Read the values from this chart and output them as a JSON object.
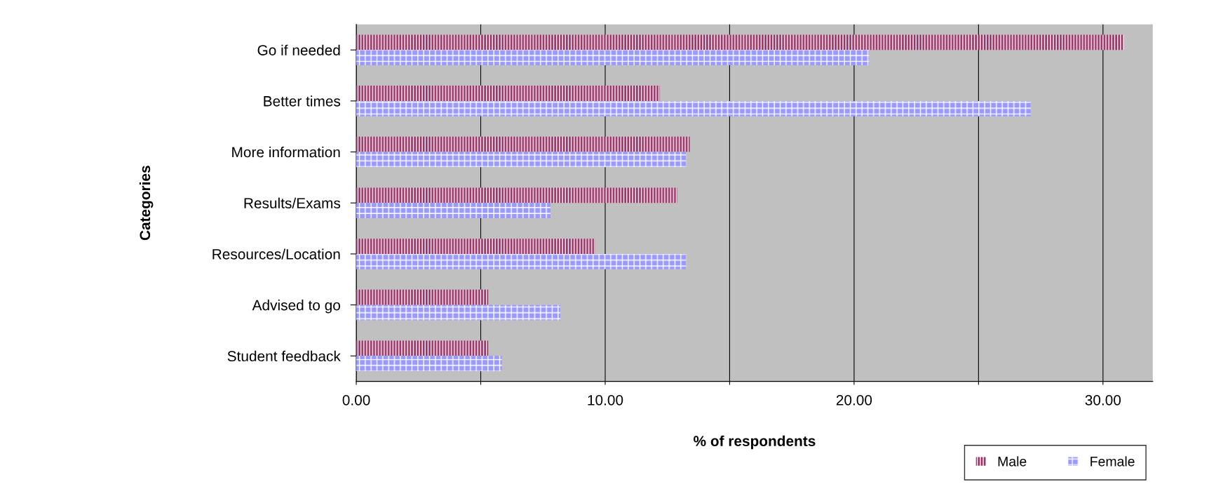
{
  "chart_data": {
    "type": "bar",
    "orientation": "horizontal",
    "categories": [
      "Go if needed",
      "Better times",
      "More information",
      "Results/Exams",
      "Resources/Location",
      "Advised to go",
      "Student feedback"
    ],
    "series": [
      {
        "name": "Male",
        "color": "#993366",
        "values": [
          30.85,
          12.2,
          13.4,
          12.9,
          9.6,
          5.3,
          5.3
        ]
      },
      {
        "name": "Female",
        "color": "#9999ff",
        "values": [
          20.6,
          27.1,
          13.25,
          7.8,
          13.25,
          8.2,
          5.85
        ]
      }
    ],
    "xlabel": "% of respondents",
    "ylabel": "Categories",
    "xlim": [
      0,
      32
    ],
    "xticks": [
      {
        "value": 0,
        "label": "0.00"
      },
      {
        "value": 5,
        "label": null
      },
      {
        "value": 10,
        "label": "10.00"
      },
      {
        "value": 15,
        "label": null
      },
      {
        "value": 20,
        "label": "20.00"
      },
      {
        "value": 25,
        "label": null
      },
      {
        "value": 30,
        "label": "30.00"
      }
    ],
    "grid": "x",
    "legend": "bottom right"
  }
}
